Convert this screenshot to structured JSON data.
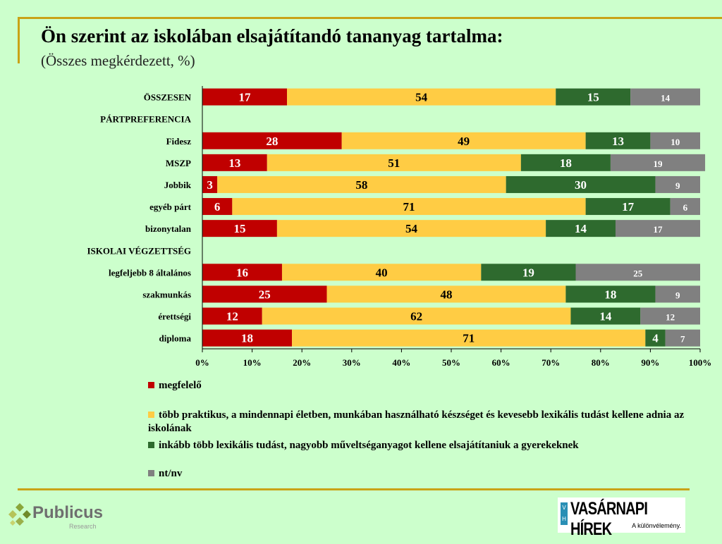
{
  "title": "Ön szerint az iskolában elsajátítandó tananyag tartalma:",
  "subtitle": "(Összes megkérdezett, %)",
  "colors": {
    "megfelelo": "#C00000",
    "praktikus": "#FFCC44",
    "lexikalis": "#2E6A2E",
    "ntnv": "#808080"
  },
  "chart_data": {
    "type": "bar",
    "stacked": true,
    "orientation": "horizontal",
    "xlim": [
      0,
      100
    ],
    "xticks": [
      "0%",
      "10%",
      "20%",
      "30%",
      "40%",
      "50%",
      "60%",
      "70%",
      "80%",
      "90%",
      "100%"
    ],
    "categories": [
      "ÖSSZESEN",
      "PÁRTPREFERENCIA",
      "Fidesz",
      "MSZP",
      "Jobbik",
      "egyéb párt",
      "bizonytalan",
      "ISKOLAI VÉGZETTSÉG",
      "legfeljebb 8 általános",
      "szakmunkás",
      "érettségi",
      "diploma"
    ],
    "series": [
      {
        "name": "megfelelő",
        "values": [
          17,
          null,
          28,
          13,
          3,
          6,
          15,
          null,
          16,
          25,
          12,
          18
        ]
      },
      {
        "name": "több praktikus, a mindennapi életben, munkában használható készséget és kevesebb lexikális tudást kellene adnia az iskolának",
        "values": [
          54,
          null,
          49,
          51,
          58,
          71,
          54,
          null,
          40,
          48,
          62,
          71
        ]
      },
      {
        "name": "inkább több lexikális tudást, nagyobb műveltséganyagot kellene elsajátítaniuk a gyerekeknek",
        "values": [
          15,
          null,
          13,
          18,
          30,
          17,
          14,
          null,
          19,
          18,
          14,
          4
        ]
      },
      {
        "name": "nt/nv",
        "values": [
          14,
          null,
          10,
          19,
          9,
          6,
          17,
          null,
          25,
          9,
          12,
          7
        ]
      }
    ],
    "legend_position": "bottom"
  },
  "legend": [
    "megfelelő",
    "több praktikus, a mindennapi életben, munkában használható készséget és kevesebb lexikális tudást kellene adnia az iskolának",
    "inkább több lexikális tudást, nagyobb műveltséganyagot kellene elsajátítaniuk a gyerekeknek",
    "nt/nv"
  ],
  "logos": {
    "publicus": "Publicus",
    "publicus_sub": "Research",
    "vh": "VASÁRNAPI HÍREK",
    "vh_badge": "V H",
    "vh_sub": "A különvélemény."
  }
}
